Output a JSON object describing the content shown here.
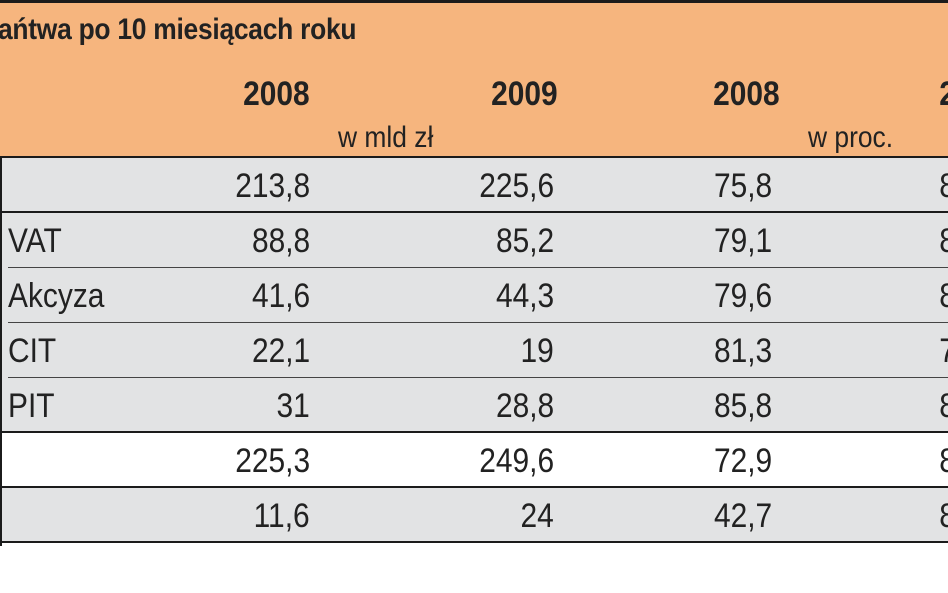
{
  "table": {
    "title": "ańtwa po 10 miesiącach roku",
    "col_years": [
      "2008",
      "2009",
      "2008",
      "2"
    ],
    "unit_mld": "w mld zł",
    "unit_proc": "w proc.",
    "rows": [
      {
        "label": "",
        "v": [
          "213,8",
          "225,6",
          "75,8",
          "8"
        ],
        "bg": "gray"
      },
      {
        "label": "VAT",
        "v": [
          "88,8",
          "85,2",
          "79,1",
          "8"
        ],
        "bg": "gray"
      },
      {
        "label": "Akcyza",
        "v": [
          "41,6",
          "44,3",
          "79,6",
          "8"
        ],
        "bg": "gray"
      },
      {
        "label": "CIT",
        "v": [
          "22,1",
          "19",
          "81,3",
          "7"
        ],
        "bg": "gray"
      },
      {
        "label": "PIT",
        "v": [
          "31",
          "28,8",
          "85,8",
          "8"
        ],
        "bg": "gray"
      },
      {
        "label": "",
        "v": [
          "225,3",
          "249,6",
          "72,9",
          "8"
        ],
        "bg": "white"
      },
      {
        "label": "",
        "v": [
          "11,6",
          "24",
          "42,7",
          "8"
        ],
        "bg": "gray"
      }
    ]
  }
}
